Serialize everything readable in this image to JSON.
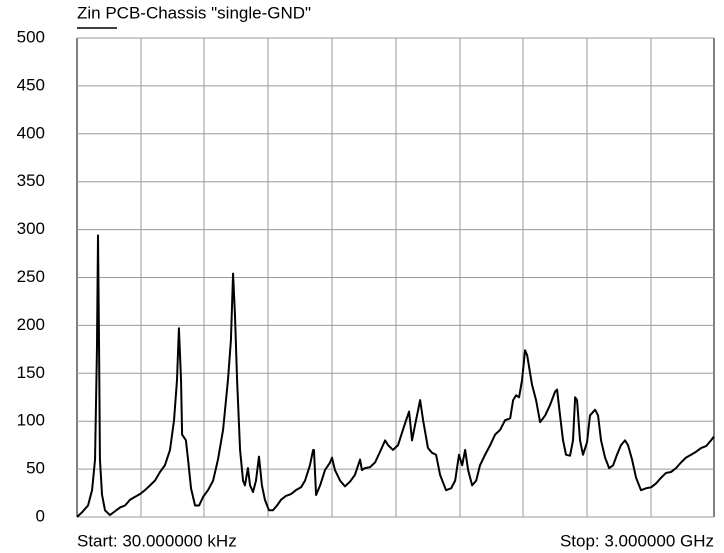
{
  "chart_data": {
    "type": "line",
    "series": [
      {
        "name": "Zin PCB-Chassis \"single-GND\"",
        "color": "#000000",
        "x": [
          3e-05,
          0.024,
          0.052,
          0.071,
          0.085,
          0.094,
          0.099,
          0.104,
          0.108,
          0.118,
          0.132,
          0.155,
          0.179,
          0.203,
          0.226,
          0.25,
          0.273,
          0.297,
          0.32,
          0.344,
          0.367,
          0.391,
          0.414,
          0.438,
          0.457,
          0.471,
          0.48,
          0.49,
          0.495,
          0.513,
          0.523,
          0.537,
          0.556,
          0.575,
          0.594,
          0.617,
          0.641,
          0.664,
          0.688,
          0.711,
          0.725,
          0.735,
          0.744,
          0.754,
          0.768,
          0.782,
          0.791,
          0.805,
          0.815,
          0.829,
          0.843,
          0.857,
          0.871,
          0.885,
          0.904,
          0.923,
          0.942,
          0.961,
          0.984,
          1.008,
          1.031,
          1.055,
          1.074,
          1.097,
          1.112,
          1.116,
          1.126,
          1.145,
          1.168,
          1.192,
          1.201,
          1.215,
          1.239,
          1.262,
          1.286,
          1.309,
          1.324,
          1.333,
          1.342,
          1.356,
          1.38,
          1.404,
          1.427,
          1.451,
          1.465,
          1.488,
          1.512,
          1.535,
          1.55,
          1.564,
          1.578,
          1.592,
          1.616,
          1.63,
          1.653,
          1.672,
          1.691,
          1.71,
          1.738,
          1.762,
          1.781,
          1.799,
          1.814,
          1.828,
          1.842,
          1.861,
          1.88,
          1.898,
          1.922,
          1.946,
          1.969,
          1.993,
          2.016,
          2.04,
          2.054,
          2.068,
          2.082,
          2.096,
          2.11,
          2.12,
          2.143,
          2.162,
          2.181,
          2.205,
          2.228,
          2.252,
          2.261,
          2.275,
          2.289,
          2.303,
          2.322,
          2.336,
          2.346,
          2.355,
          2.369,
          2.383,
          2.402,
          2.416,
          2.44,
          2.454,
          2.468,
          2.487,
          2.506,
          2.525,
          2.543,
          2.562,
          2.581,
          2.595,
          2.614,
          2.633,
          2.656,
          2.68,
          2.704,
          2.727,
          2.751,
          2.774,
          2.798,
          2.821,
          2.845,
          2.868,
          2.892,
          2.915,
          2.939,
          2.963,
          2.986,
          3
        ],
        "values": [
          0,
          5,
          12,
          28,
          60,
          175,
          294,
          175,
          60,
          23,
          7,
          2,
          6,
          10,
          12,
          18,
          21,
          24,
          28,
          33,
          38,
          47,
          54,
          70,
          101,
          143,
          197,
          143,
          86,
          80,
          60,
          30,
          12,
          12,
          21,
          28,
          38,
          60,
          91,
          143,
          185,
          254,
          211,
          143,
          70,
          38,
          33,
          51,
          33,
          26,
          38,
          63,
          33,
          18,
          7,
          7,
          12,
          18,
          22,
          24,
          28,
          31,
          38,
          54,
          70,
          70,
          23,
          33,
          49,
          57,
          62,
          49,
          38,
          32,
          37,
          44,
          54,
          60,
          49,
          51,
          52,
          57,
          68,
          80,
          75,
          70,
          75,
          91,
          101,
          110,
          80,
          96,
          122,
          101,
          72,
          67,
          65,
          44,
          28,
          30,
          38,
          65,
          54,
          70,
          49,
          33,
          38,
          54,
          65,
          75,
          86,
          91,
          101,
          103,
          122,
          127,
          125,
          143,
          174,
          169,
          138,
          122,
          99,
          106,
          117,
          131,
          133,
          106,
          80,
          65,
          64,
          80,
          125,
          122,
          80,
          65,
          78,
          106,
          112,
          106,
          80,
          62,
          51,
          54,
          65,
          75,
          80,
          75,
          60,
          41,
          28,
          30,
          31,
          35,
          41,
          46,
          47,
          51,
          57,
          62,
          65,
          68,
          72,
          74,
          80,
          84
        ]
      }
    ],
    "xlim": [
      3e-05,
      3
    ],
    "ylim": [
      0,
      500
    ],
    "yticks": [
      0,
      50,
      100,
      150,
      200,
      250,
      300,
      350,
      400,
      450,
      500
    ],
    "grid": true,
    "start_label": "Start: 30.000000 kHz",
    "stop_label": "Stop: 3.000000 GHz"
  }
}
